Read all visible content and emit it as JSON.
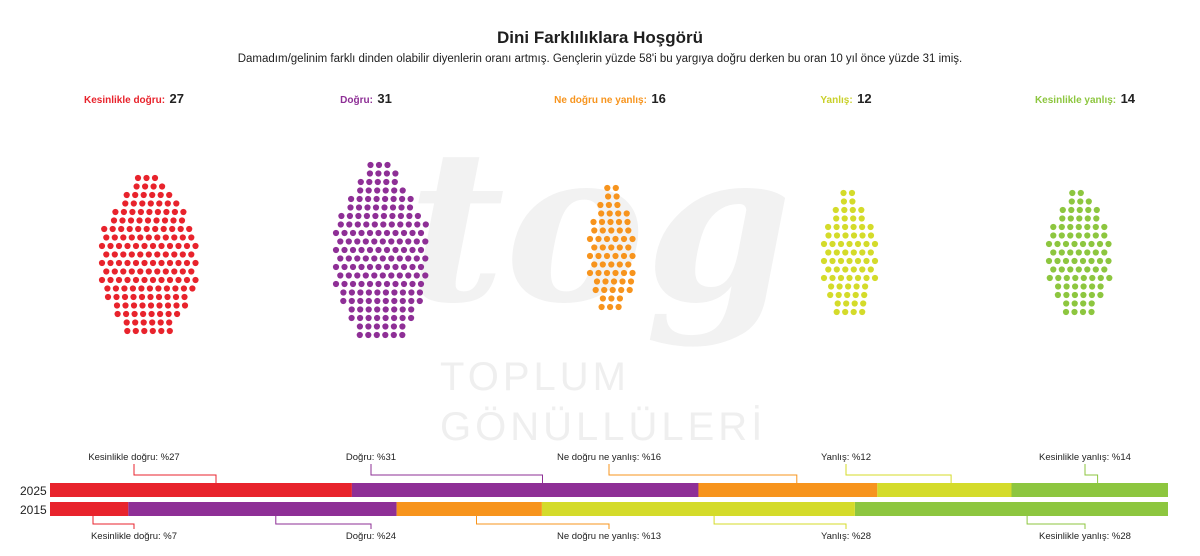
{
  "header": {
    "title": "Dini Farklılıklara Hoşgörü",
    "subtitle": "Damadım/gelinim farklı dinden olabilir diyenlerin oranı artmış. Gençlerin yüzde 58'i bu yargıya doğru derken bu oran 10 yıl önce yüzde 31 imiş."
  },
  "watermark": {
    "logo_text": "tog",
    "line1": "TOPLUM",
    "line2": "GÖNÜLLÜLERİ"
  },
  "categories": [
    {
      "name": "Kesinlikle doğru:",
      "value": "27",
      "color": "#e8232c"
    },
    {
      "name": "Doğru:",
      "value": "31",
      "color": "#8e2f96"
    },
    {
      "name": "Ne doğru ne yanlış:",
      "value": "16",
      "color": "#f7941d"
    },
    {
      "name": "Yanlış:",
      "value": "12",
      "color": "#d4db2a"
    },
    {
      "name": "Kesinlikle yanlış:",
      "value": "14",
      "color": "#8dc63f"
    }
  ],
  "chart_data": {
    "type": "bar",
    "orientation": "horizontal-stacked-100",
    "title": "Dini Farklılıklara Hoşgörü",
    "categories": [
      "2025",
      "2015"
    ],
    "series": [
      {
        "name": "Kesinlikle doğru",
        "color": "#e8232c",
        "values": [
          27,
          7
        ]
      },
      {
        "name": "Doğru",
        "color": "#8e2f96",
        "values": [
          31,
          24
        ]
      },
      {
        "name": "Ne doğru ne yanlış",
        "color": "#f7941d",
        "values": [
          16,
          13
        ]
      },
      {
        "name": "Yanlış",
        "color": "#d4db2a",
        "values": [
          12,
          28
        ]
      },
      {
        "name": "Kesinlikle yanlış",
        "color": "#8dc63f",
        "values": [
          14,
          28
        ]
      }
    ],
    "labels_2025": [
      "Kesinlikle doğru: %27",
      "Doğru: %31",
      "Ne doğru ne yanlış: %16",
      "Yanlış: %12",
      "Kesinlikle yanlış: %14"
    ],
    "labels_2015": [
      "Kesinlikle doğru: %7",
      "Doğru: %24",
      "Ne doğru ne yanlış: %13",
      "Yanlış: %28",
      "Kesinlikle yanlış: %28"
    ],
    "grid": false
  }
}
